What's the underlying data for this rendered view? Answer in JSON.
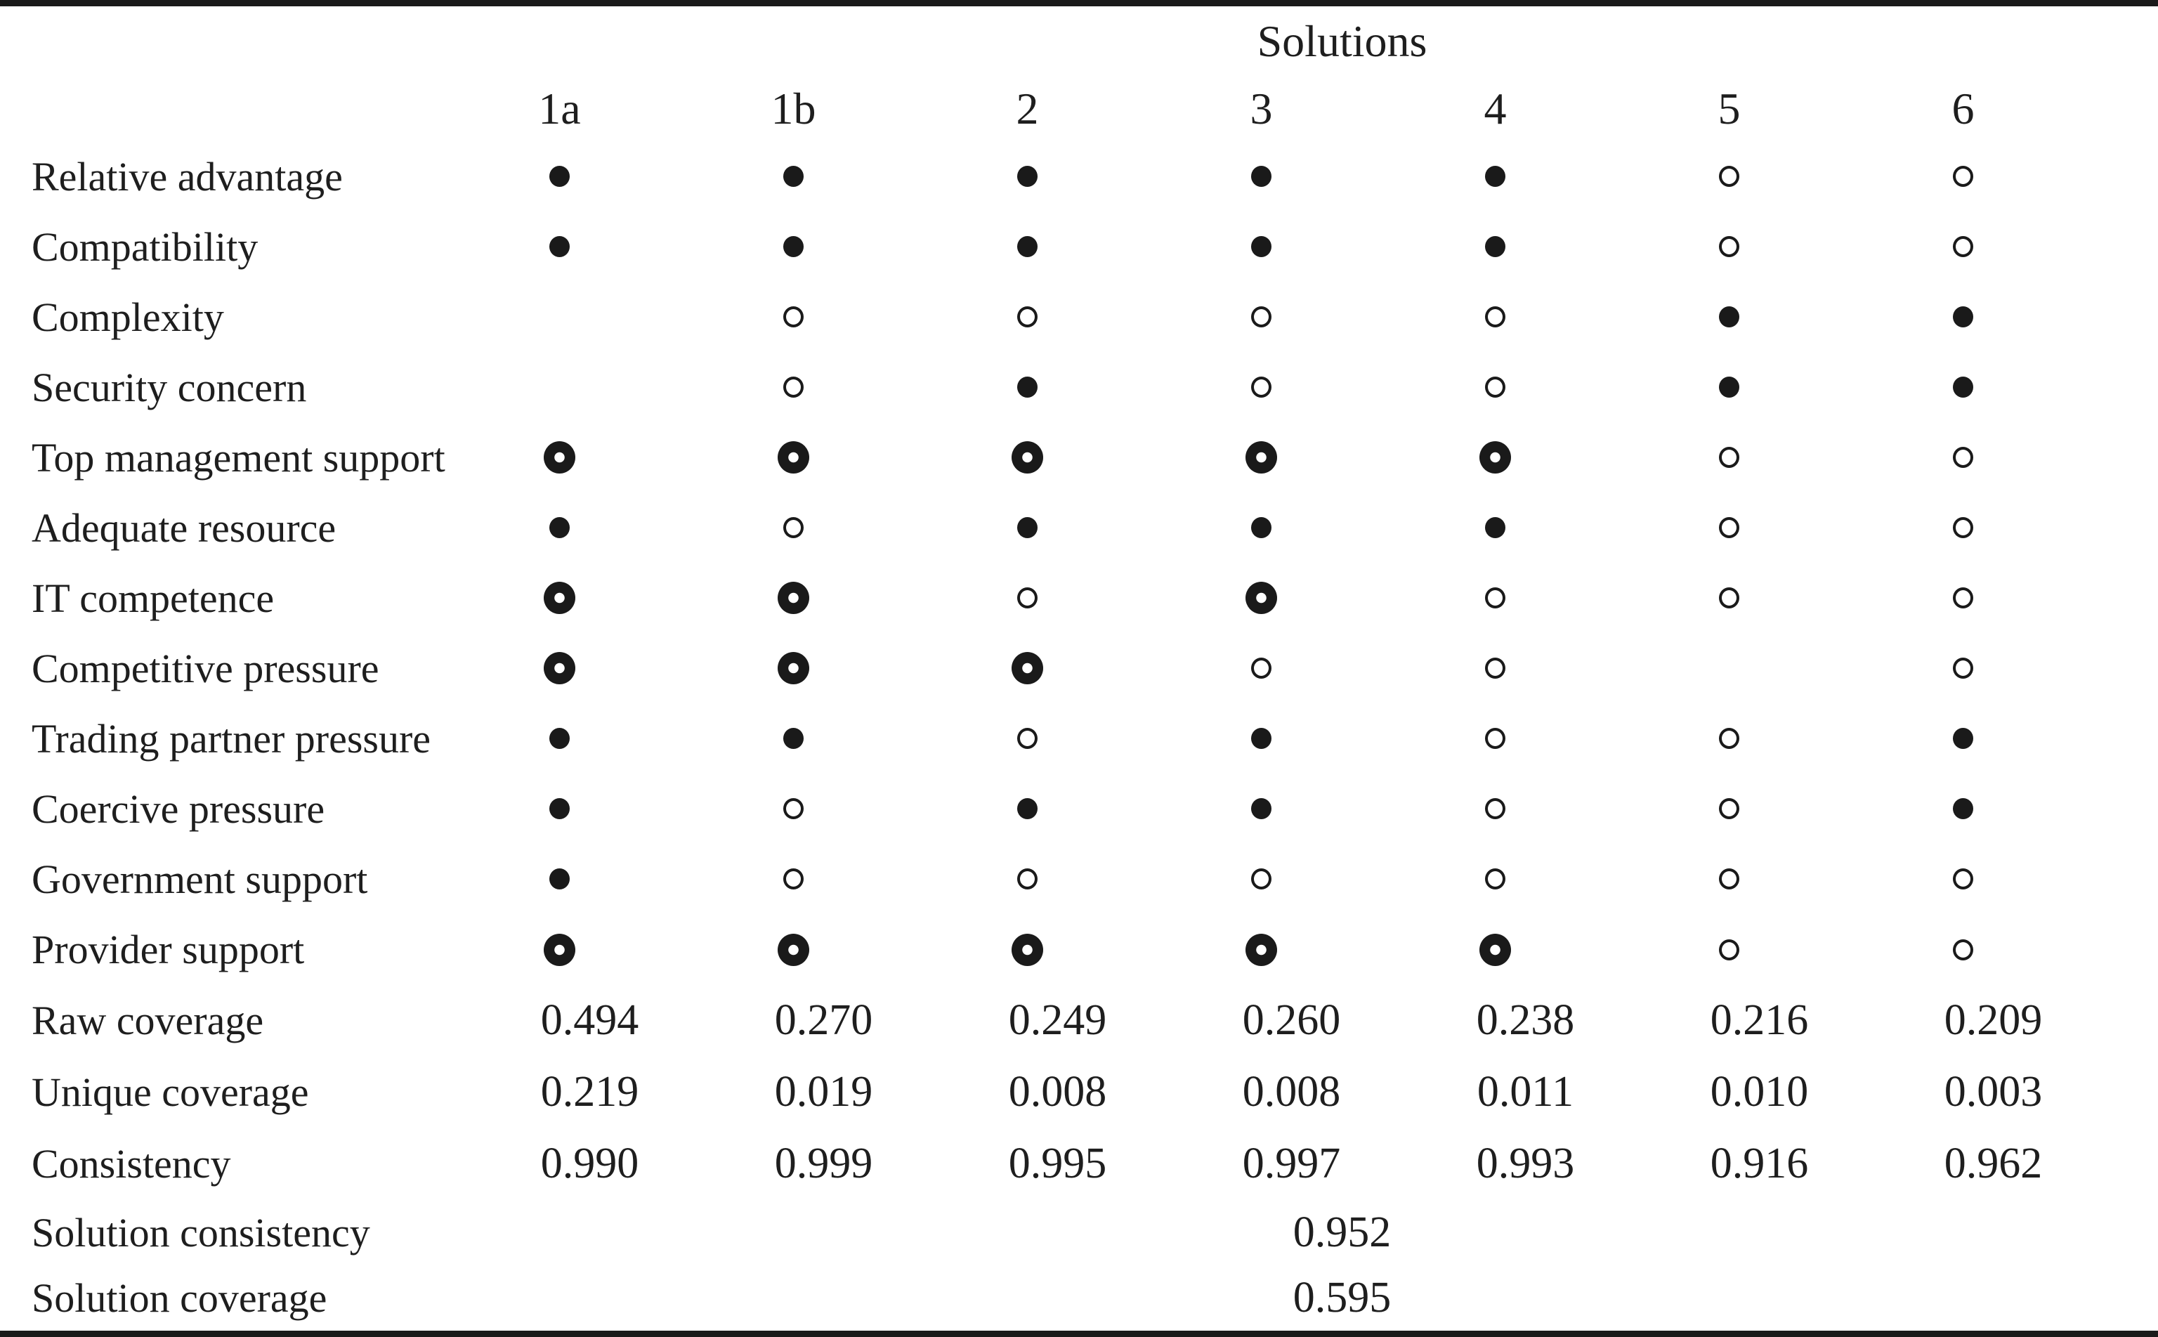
{
  "table": {
    "title": "Solutions",
    "columns": [
      "1a",
      "1b",
      "2",
      "3",
      "4",
      "5",
      "6"
    ],
    "symbols": {
      "filled": "filled-circle",
      "open": "open-circle",
      "bullseye": "bullseye-circle",
      "blank": "empty"
    },
    "condition_rows": [
      {
        "label": "Relative advantage",
        "cells": [
          "filled",
          "filled",
          "filled",
          "filled",
          "filled",
          "open",
          "open"
        ]
      },
      {
        "label": "Compatibility",
        "cells": [
          "filled",
          "filled",
          "filled",
          "filled",
          "filled",
          "open",
          "open"
        ]
      },
      {
        "label": "Complexity",
        "cells": [
          "",
          "open",
          "open",
          "open",
          "open",
          "filled",
          "filled"
        ]
      },
      {
        "label": "Security concern",
        "cells": [
          "",
          "open",
          "filled",
          "open",
          "open",
          "filled",
          "filled"
        ]
      },
      {
        "label": "Top management support",
        "cells": [
          "bullseye",
          "bullseye",
          "bullseye",
          "bullseye",
          "bullseye",
          "open",
          "open"
        ]
      },
      {
        "label": "Adequate resource",
        "cells": [
          "filled",
          "open",
          "filled",
          "filled",
          "filled",
          "open",
          "open"
        ]
      },
      {
        "label": "IT competence",
        "cells": [
          "bullseye",
          "bullseye",
          "open",
          "bullseye",
          "open",
          "open",
          "open"
        ]
      },
      {
        "label": "Competitive pressure",
        "cells": [
          "bullseye",
          "bullseye",
          "bullseye",
          "open",
          "open",
          "",
          "open"
        ]
      },
      {
        "label": "Trading partner pressure",
        "cells": [
          "filled",
          "filled",
          "open",
          "filled",
          "open",
          "open",
          "filled"
        ]
      },
      {
        "label": "Coercive pressure",
        "cells": [
          "filled",
          "open",
          "filled",
          "filled",
          "open",
          "open",
          "filled"
        ]
      },
      {
        "label": "Government support",
        "cells": [
          "filled",
          "open",
          "open",
          "open",
          "open",
          "open",
          "open"
        ]
      },
      {
        "label": "Provider support",
        "cells": [
          "bullseye",
          "bullseye",
          "bullseye",
          "bullseye",
          "bullseye",
          "open",
          "open"
        ]
      }
    ],
    "metric_rows": [
      {
        "label": "Raw coverage",
        "values": [
          "0.494",
          "0.270",
          "0.249",
          "0.260",
          "0.238",
          "0.216",
          "0.209"
        ]
      },
      {
        "label": "Unique coverage",
        "values": [
          "0.219",
          "0.019",
          "0.008",
          "0.008",
          "0.011",
          "0.010",
          "0.003"
        ]
      },
      {
        "label": "Consistency",
        "values": [
          "0.990",
          "0.999",
          "0.995",
          "0.997",
          "0.993",
          "0.916",
          "0.962"
        ]
      }
    ],
    "summary_rows": [
      {
        "label": "Solution consistency",
        "value": "0.952"
      },
      {
        "label": "Solution coverage",
        "value": "0.595"
      }
    ]
  }
}
